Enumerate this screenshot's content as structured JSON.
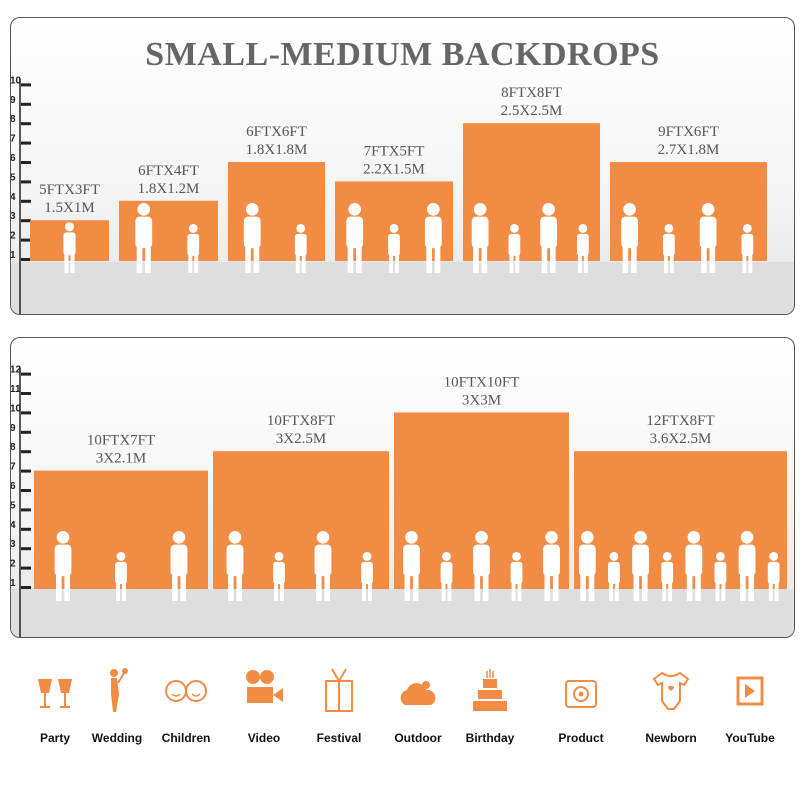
{
  "title": "SMALL-MEDIUM BACKDROPS",
  "colors": {
    "bar": "#F28C45",
    "label": "#555555",
    "figure": "#ffffff"
  },
  "chart_data": [
    {
      "type": "bar",
      "yticks": [
        1,
        2,
        3,
        4,
        5,
        6,
        7,
        8,
        9,
        10
      ],
      "ylim": [
        1,
        10
      ],
      "bars": [
        {
          "size_ft": "5FTX3FT",
          "size_m": "1.5X1M",
          "height": 3,
          "figures": 1
        },
        {
          "size_ft": "6FTX4FT",
          "size_m": "1.8X1.2M",
          "height": 4,
          "figures": 2
        },
        {
          "size_ft": "6FTX6FT",
          "size_m": "1.8X1.8M",
          "height": 6,
          "figures": 2
        },
        {
          "size_ft": "7FTX5FT",
          "size_m": "2.2X1.5M",
          "height": 5,
          "figures": 3
        },
        {
          "size_ft": "8FTX8FT",
          "size_m": "2.5X2.5M",
          "height": 8,
          "figures": 4
        },
        {
          "size_ft": "9FTX6FT",
          "size_m": "2.7X1.8M",
          "height": 6,
          "figures": 4
        }
      ]
    },
    {
      "type": "bar",
      "yticks": [
        1,
        2,
        3,
        4,
        5,
        6,
        7,
        8,
        9,
        10,
        11,
        12
      ],
      "ylim": [
        1,
        12
      ],
      "bars": [
        {
          "size_ft": "10FTX7FT",
          "size_m": "3X2.1M",
          "height": 7,
          "figures": 3
        },
        {
          "size_ft": "10FTX8FT",
          "size_m": "3X2.5M",
          "height": 8,
          "figures": 4
        },
        {
          "size_ft": "10FTX10FT",
          "size_m": "3X3M",
          "height": 10,
          "figures": 5
        },
        {
          "size_ft": "12FTX8FT",
          "size_m": "3.6X2.5M",
          "height": 8,
          "figures": 8
        }
      ]
    }
  ],
  "uses": [
    {
      "label": "Party",
      "icon": "wine-glasses-icon"
    },
    {
      "label": "Wedding",
      "icon": "wedding-couple-icon"
    },
    {
      "label": "Children",
      "icon": "children-faces-icon"
    },
    {
      "label": "Video",
      "icon": "video-camera-icon"
    },
    {
      "label": "Festival",
      "icon": "gift-box-icon"
    },
    {
      "label": "Outdoor",
      "icon": "cloud-icon"
    },
    {
      "label": "Birthday",
      "icon": "birthday-cake-icon"
    },
    {
      "label": "Product",
      "icon": "camera-icon"
    },
    {
      "label": "Newborn",
      "icon": "baby-onesie-icon"
    },
    {
      "label": "YouTube",
      "icon": "play-button-icon"
    }
  ]
}
